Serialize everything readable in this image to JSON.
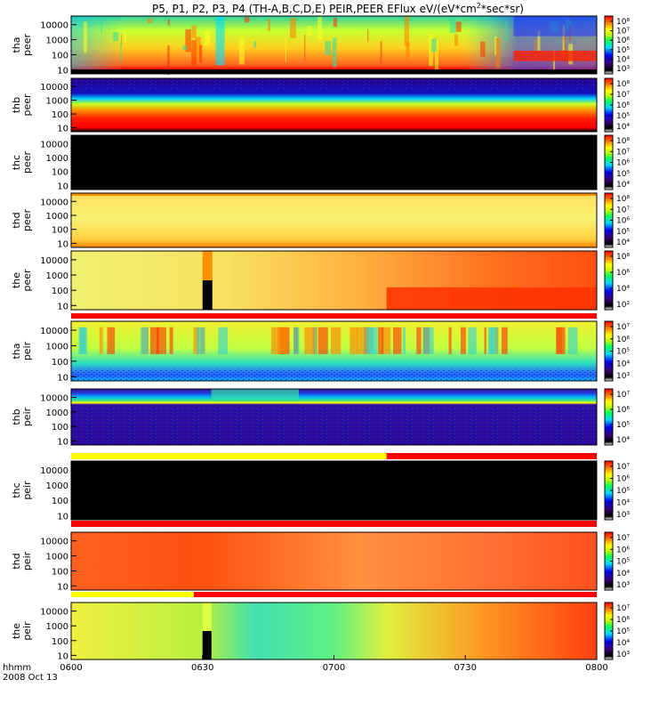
{
  "title": {
    "prefix": "P5, P1, P2, P3, P4 (TH-A,B,C,D,E) PEIR,PEER EFlux eV/(eV*cm",
    "sup": "2",
    "suffix": "*sec*sr)"
  },
  "footer": {
    "axis_name": "hhmm",
    "date": "2008 Oct 13"
  },
  "chart_data": {
    "type": "heatmap",
    "x_axis": {
      "range": [
        "06:00",
        "08:00"
      ],
      "ticks": [
        "0600",
        "0630",
        "0700",
        "0730",
        "0800"
      ]
    },
    "panels": [
      {
        "probe": "tha",
        "instrument": "peer",
        "y_ticks": [
          "10000",
          "1000",
          "100",
          "10"
        ],
        "colorbar_ticks": [
          "10⁸",
          "10⁷",
          "10⁶",
          "10⁵",
          "10⁴",
          "10³"
        ],
        "mode_bar": []
      },
      {
        "probe": "thb",
        "instrument": "peer",
        "y_ticks": [
          "10000",
          "1000",
          "100",
          "10"
        ],
        "colorbar_ticks": [
          "10⁸",
          "10⁷",
          "10⁶",
          "10⁵",
          "10⁴"
        ],
        "mode_bar": []
      },
      {
        "probe": "thc",
        "instrument": "peer",
        "y_ticks": [
          "10000",
          "1000",
          "100",
          "10"
        ],
        "colorbar_ticks": [
          "10⁸",
          "10⁷",
          "10⁶",
          "10⁵",
          "10⁴"
        ],
        "mode_bar": []
      },
      {
        "probe": "thd",
        "instrument": "peer",
        "y_ticks": [
          "10000",
          "1000",
          "100",
          "10"
        ],
        "colorbar_ticks": [
          "10⁸",
          "10⁷",
          "10⁶",
          "10⁵",
          "10⁴"
        ],
        "mode_bar": []
      },
      {
        "probe": "the",
        "instrument": "peer",
        "y_ticks": [
          "10000",
          "1000",
          "100",
          "10"
        ],
        "colorbar_ticks": [
          "10⁸",
          "10⁶",
          "10⁴",
          "10²"
        ],
        "mode_bar": [
          {
            "from": "06:00",
            "to": "08:00",
            "color": "#ff0000"
          }
        ]
      },
      {
        "probe": "tha",
        "instrument": "peir",
        "y_ticks": [
          "10000",
          "1000",
          "100",
          "10"
        ],
        "colorbar_ticks": [
          "10⁷",
          "10⁶",
          "10⁵",
          "10⁴",
          "10³"
        ],
        "mode_bar": []
      },
      {
        "probe": "thb",
        "instrument": "peir",
        "y_ticks": [
          "10000",
          "1000",
          "100",
          "10"
        ],
        "colorbar_ticks": [
          "10⁷",
          "10⁶",
          "10⁵",
          "10⁴"
        ],
        "mode_bar": [
          {
            "from": "06:00",
            "to": "07:12",
            "color": "#ffff00"
          },
          {
            "from": "07:12",
            "to": "08:00",
            "color": "#ff0000"
          }
        ]
      },
      {
        "probe": "thc",
        "instrument": "peir",
        "y_ticks": [
          "10000",
          "1000",
          "100",
          "10"
        ],
        "colorbar_ticks": [
          "10⁷",
          "10⁶",
          "10⁵",
          "10⁴",
          "10³"
        ],
        "mode_bar": [
          {
            "from": "06:00",
            "to": "08:00",
            "color": "#ff0000"
          }
        ]
      },
      {
        "probe": "thd",
        "instrument": "peir",
        "y_ticks": [
          "10000",
          "1000",
          "100",
          "10"
        ],
        "colorbar_ticks": [
          "10⁷",
          "10⁶",
          "10⁵",
          "10⁴",
          "10³"
        ],
        "mode_bar": [
          {
            "from": "06:00",
            "to": "06:28",
            "color": "#ffff00"
          },
          {
            "from": "06:28",
            "to": "08:00",
            "color": "#ff0000"
          }
        ]
      },
      {
        "probe": "the",
        "instrument": "peir",
        "y_ticks": [
          "10000",
          "1000",
          "100",
          "10"
        ],
        "colorbar_ticks": [
          "10⁷",
          "10⁶",
          "10⁵",
          "10⁴",
          "10³"
        ],
        "mode_bar": []
      }
    ]
  },
  "colors": {
    "colormap": [
      "#ffffff",
      "#000000",
      "#3a0070",
      "#0000ff",
      "#00d8ff",
      "#00ff60",
      "#c8ff00",
      "#ffff00",
      "#ff8000",
      "#ff0000"
    ],
    "no_data": "#000000"
  }
}
